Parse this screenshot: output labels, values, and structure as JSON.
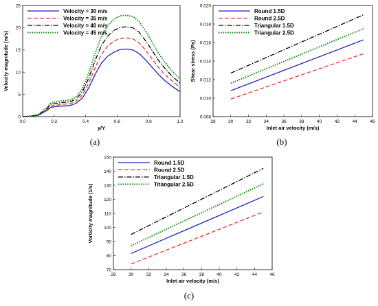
{
  "chart_data": [
    {
      "type": "line",
      "caption": "(a)",
      "xlabel": "y/Y",
      "ylabel": "Velocity magnitude (m/s)",
      "xlim": [
        0.0,
        1.0
      ],
      "ylim": [
        0,
        25
      ],
      "xticks": [
        "0.0",
        "0.2",
        "0.4",
        "0.6",
        "0.8",
        "1.0"
      ],
      "yticks": [
        "0",
        "5",
        "10",
        "15",
        "20",
        "25"
      ],
      "grid": false,
      "legend": "top-left",
      "x": [
        0.0,
        0.05,
        0.1,
        0.15,
        0.18,
        0.22,
        0.26,
        0.3,
        0.34,
        0.38,
        0.42,
        0.46,
        0.5,
        0.54,
        0.58,
        0.62,
        0.66,
        0.7,
        0.74,
        0.78,
        0.82,
        0.86,
        0.9,
        0.95,
        1.0
      ],
      "series": [
        {
          "name": "Velocity = 30 m/s",
          "color": "#1f1fbf",
          "dash": "solid",
          "values": [
            0,
            0.1,
            0.3,
            1.3,
            2.1,
            2.3,
            2.4,
            2.5,
            3.0,
            4.2,
            6.5,
            9.5,
            12.0,
            13.6,
            14.5,
            15.1,
            15.2,
            15.0,
            14.2,
            12.8,
            11.2,
            9.6,
            8.2,
            6.8,
            5.6
          ]
        },
        {
          "name": "Velocity = 35 m/s",
          "color": "#e8312a",
          "dash": "6,3",
          "values": [
            0,
            0.1,
            0.35,
            1.5,
            2.4,
            2.6,
            2.8,
            2.9,
            3.5,
            4.9,
            7.6,
            11.0,
            14.0,
            15.9,
            17.0,
            17.6,
            17.7,
            17.5,
            16.6,
            15.0,
            13.1,
            11.2,
            9.6,
            8.0,
            6.6
          ]
        },
        {
          "name": "Velocity = 40 m/s",
          "color": "#000000",
          "dash": "7,2,1.5,2",
          "values": [
            0,
            0.1,
            0.4,
            1.7,
            2.8,
            3.0,
            3.2,
            3.3,
            4.0,
            5.6,
            8.7,
            12.6,
            16.0,
            18.1,
            19.4,
            20.1,
            20.2,
            20.0,
            19.0,
            17.1,
            15.0,
            12.8,
            11.0,
            9.1,
            7.5
          ]
        },
        {
          "name": "Velocity = 45 m/s",
          "color": "#0a8a0a",
          "dash": "1.5,1.8",
          "values": [
            0,
            0.12,
            0.45,
            1.9,
            3.1,
            3.4,
            3.6,
            3.7,
            4.5,
            6.3,
            9.8,
            14.2,
            18.0,
            20.4,
            21.9,
            22.7,
            22.8,
            22.5,
            21.4,
            19.3,
            16.9,
            14.4,
            12.4,
            10.2,
            8.5
          ]
        }
      ]
    },
    {
      "type": "line",
      "caption": "(b)",
      "xlabel": "Inlet air velocity (m/s)",
      "ylabel": "Shear stress (Pa)",
      "xlim": [
        28,
        46
      ],
      "ylim": [
        0.008,
        0.02
      ],
      "xticks": [
        "28",
        "30",
        "32",
        "34",
        "36",
        "38",
        "40",
        "42",
        "44",
        "46"
      ],
      "yticks": [
        "0.008",
        "0.010",
        "0.012",
        "0.014",
        "0.016",
        "0.018",
        "0.020"
      ],
      "grid": false,
      "legend": "top-left",
      "x": [
        30,
        45
      ],
      "series": [
        {
          "name": "Round 1.5D",
          "color": "#1f1fbf",
          "dash": "solid",
          "values": [
            0.0108,
            0.0163
          ]
        },
        {
          "name": "Round 2.5D",
          "color": "#e8312a",
          "dash": "6,3",
          "values": [
            0.0099,
            0.0148
          ]
        },
        {
          "name": "Triangular 1.5D",
          "color": "#000000",
          "dash": "7,2,1.5,2",
          "values": [
            0.0127,
            0.019
          ]
        },
        {
          "name": "Triangular 2.5D",
          "color": "#0a8a0a",
          "dash": "1.5,1.8",
          "values": [
            0.0116,
            0.0175
          ]
        }
      ]
    },
    {
      "type": "line",
      "caption": "(c)",
      "xlabel": "Inlet air velocity (m/s)",
      "ylabel": "Vorticity magnitude (1/s)",
      "xlim": [
        28,
        46
      ],
      "ylim": [
        70,
        150
      ],
      "xticks": [
        "28",
        "30",
        "32",
        "34",
        "36",
        "38",
        "40",
        "42",
        "44",
        "46"
      ],
      "yticks": [
        "70",
        "80",
        "90",
        "100",
        "110",
        "120",
        "130",
        "140",
        "150"
      ],
      "grid": false,
      "legend": "top-left",
      "x": [
        30,
        45
      ],
      "series": [
        {
          "name": "Round 1.5D",
          "color": "#1f1fbf",
          "dash": "solid",
          "values": [
            81.5,
            122
          ]
        },
        {
          "name": "Round 2.5D",
          "color": "#e8312a",
          "dash": "6,3",
          "values": [
            74,
            111
          ]
        },
        {
          "name": "Triangular 1.5D",
          "color": "#000000",
          "dash": "7,2,1.5,2",
          "values": [
            95,
            142
          ]
        },
        {
          "name": "Triangular 2.5D",
          "color": "#0a8a0a",
          "dash": "1.5,1.8",
          "values": [
            87,
            131
          ]
        }
      ]
    }
  ]
}
